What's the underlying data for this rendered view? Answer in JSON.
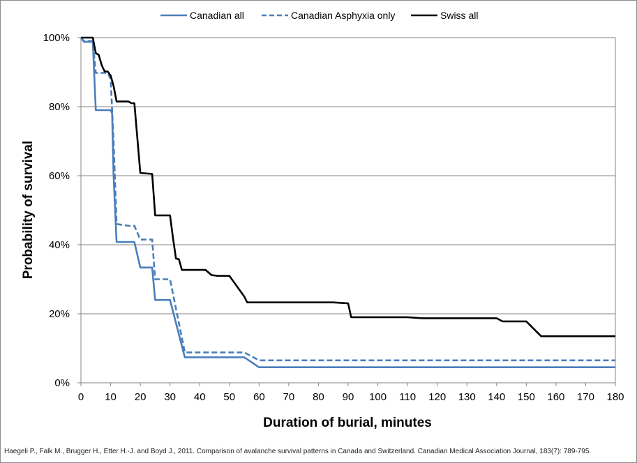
{
  "chart_data": {
    "type": "line",
    "title": "",
    "xlabel": "Duration of burial, minutes",
    "ylabel": "Probability of survival",
    "xlim": [
      0,
      180
    ],
    "ylim": [
      0,
      100
    ],
    "x_ticks": [
      0,
      10,
      20,
      30,
      40,
      50,
      60,
      70,
      80,
      90,
      100,
      110,
      120,
      130,
      140,
      150,
      160,
      170,
      180
    ],
    "y_ticks": [
      0,
      20,
      40,
      60,
      80,
      100
    ],
    "y_tick_labels": [
      "0%",
      "20%",
      "40%",
      "60%",
      "80%",
      "100%"
    ],
    "grid": "horizontal",
    "legend_position": "top",
    "series": [
      {
        "name": "Canadian all",
        "color": "#4a7ebb",
        "style": "solid",
        "points": [
          [
            0,
            100
          ],
          [
            1,
            98.8
          ],
          [
            4,
            98.8
          ],
          [
            5,
            79
          ],
          [
            10,
            79
          ],
          [
            10.5,
            78
          ],
          [
            11,
            60
          ],
          [
            12,
            40.8
          ],
          [
            18,
            40.8
          ],
          [
            20,
            33.4
          ],
          [
            24,
            33.4
          ],
          [
            25,
            24
          ],
          [
            30,
            24
          ],
          [
            35,
            7.4
          ],
          [
            55,
            7.4
          ],
          [
            60,
            4.5
          ],
          [
            180,
            4.5
          ]
        ]
      },
      {
        "name": "Canadian Asphyxia only",
        "color": "#4a7ebb",
        "style": "dashed",
        "points": [
          [
            0,
            100
          ],
          [
            1,
            99
          ],
          [
            4,
            99
          ],
          [
            5,
            89.8
          ],
          [
            9,
            89.8
          ],
          [
            10,
            88
          ],
          [
            11,
            70
          ],
          [
            12,
            46
          ],
          [
            16,
            45.5
          ],
          [
            18,
            45.5
          ],
          [
            20,
            41.5
          ],
          [
            24,
            41.5
          ],
          [
            25,
            30
          ],
          [
            30,
            30
          ],
          [
            35,
            8.8
          ],
          [
            55,
            8.8
          ],
          [
            60,
            6.5
          ],
          [
            180,
            6.5
          ]
        ]
      },
      {
        "name": "Swiss all",
        "color": "#000000",
        "style": "solid",
        "points": [
          [
            0,
            100
          ],
          [
            4,
            100
          ],
          [
            5,
            95.5
          ],
          [
            6,
            95
          ],
          [
            7,
            92
          ],
          [
            8,
            90.2
          ],
          [
            9,
            90.2
          ],
          [
            10,
            89
          ],
          [
            11,
            86
          ],
          [
            12,
            81.5
          ],
          [
            16,
            81.5
          ],
          [
            17,
            81
          ],
          [
            18,
            81
          ],
          [
            20,
            60.8
          ],
          [
            24,
            60.5
          ],
          [
            25,
            48.5
          ],
          [
            30,
            48.5
          ],
          [
            31,
            42
          ],
          [
            32,
            36
          ],
          [
            33,
            35.8
          ],
          [
            34,
            32.7
          ],
          [
            42,
            32.7
          ],
          [
            44,
            31.2
          ],
          [
            46,
            31
          ],
          [
            50,
            31
          ],
          [
            55,
            25
          ],
          [
            56,
            23.3
          ],
          [
            85,
            23.3
          ],
          [
            90,
            23
          ],
          [
            91,
            19
          ],
          [
            110,
            19
          ],
          [
            115,
            18.7
          ],
          [
            140,
            18.7
          ],
          [
            142,
            17.8
          ],
          [
            150,
            17.8
          ],
          [
            155,
            13.5
          ],
          [
            180,
            13.5
          ]
        ]
      }
    ]
  },
  "legend": {
    "items": [
      {
        "label": "Canadian all"
      },
      {
        "label": "Canadian Asphyxia only"
      },
      {
        "label": "Swiss all"
      }
    ]
  },
  "source_note": "Haegeli P., Falk M., Brugger H., Etter H.-J. and Boyd J., 2011. Comparison of avalanche survival patterns in Canada and Switzerland. Canadian Medical Association Journal, 183(7): 789-795."
}
